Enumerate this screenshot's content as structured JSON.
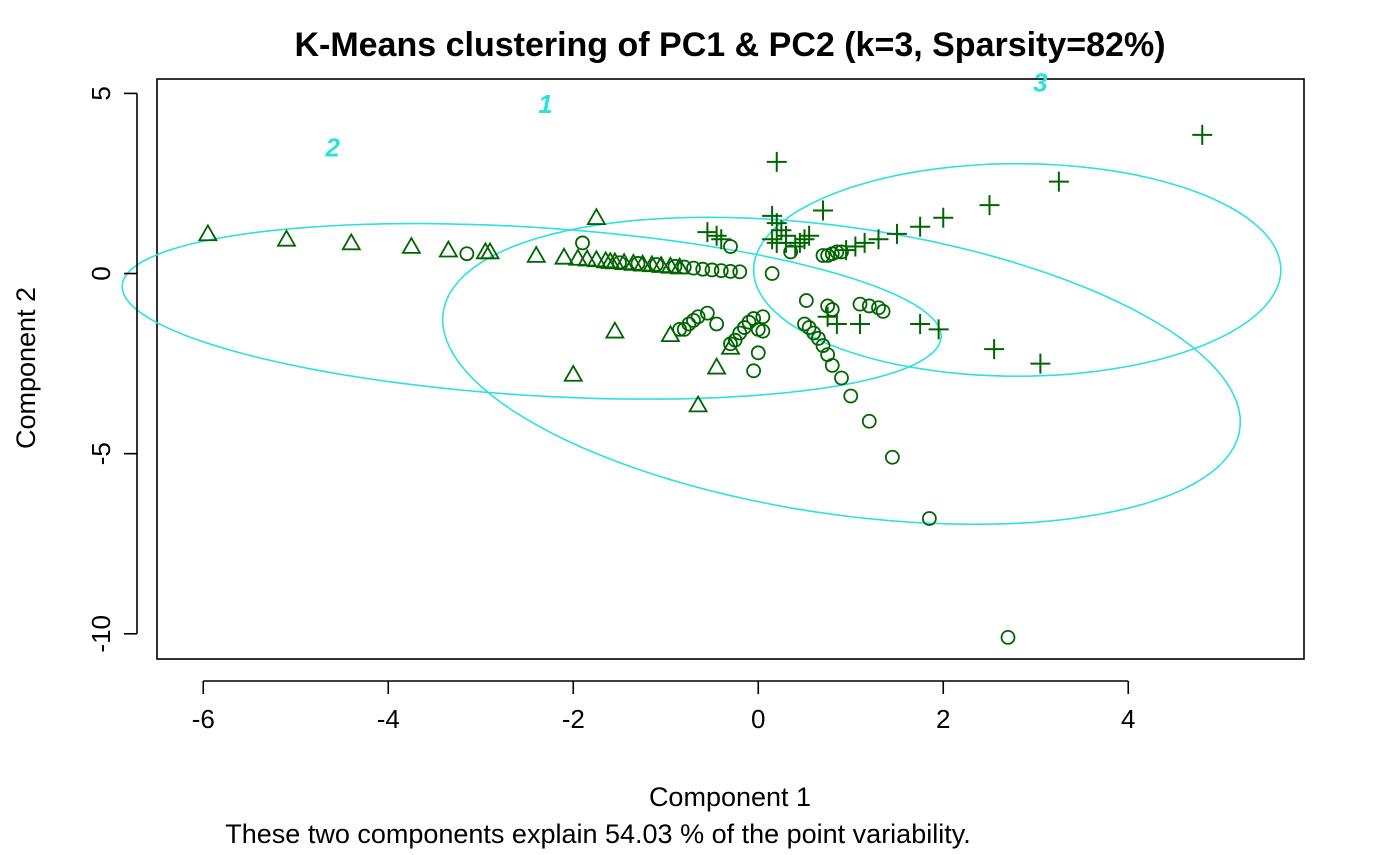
{
  "chart_data": {
    "type": "scatter",
    "title": "K-Means clustering of PC1 & PC2 (k=3, Sparsity=82%)",
    "xlabel": "Component 1",
    "ylabel": "Component 2",
    "subtitle": "These two components explain 54.03 % of the point variability.",
    "xlim": [
      -6.5,
      5.9
    ],
    "ylim": [
      -10.7,
      5.4
    ],
    "x_ticks": [
      -6,
      -4,
      -2,
      0,
      2,
      4
    ],
    "y_ticks": [
      5,
      0,
      -5,
      -10
    ],
    "grid": false,
    "colors": {
      "points": "#006400",
      "ellipse": "#2ee0e0"
    },
    "clusters": [
      {
        "label": "1",
        "ellipse": {
          "center": [
            0.9,
            -2.7
          ],
          "rx": 4.95,
          "ry": 3.5,
          "angle": -44
        },
        "label_pos": [
          -2.3,
          4.45
        ]
      },
      {
        "label": "2",
        "ellipse": {
          "center": [
            -2.45,
            -1.05
          ],
          "rx": 4.5,
          "ry": 2.3,
          "angle": -12
        },
        "label_pos": [
          -4.6,
          3.25
        ]
      },
      {
        "label": "3",
        "ellipse": {
          "center": [
            2.8,
            0.1
          ],
          "rx": 2.85,
          "ry": 2.95,
          "angle": 0
        },
        "label_pos": [
          3.05,
          5.05
        ]
      }
    ],
    "series": [
      {
        "marker": "circle",
        "cluster": "1",
        "points": [
          [
            -3.15,
            0.55
          ],
          [
            -1.9,
            0.85
          ],
          [
            -0.3,
            0.75
          ],
          [
            -1.5,
            0.3
          ],
          [
            -1.3,
            0.28
          ],
          [
            -1.1,
            0.25
          ],
          [
            -0.9,
            0.2
          ],
          [
            -0.8,
            0.18
          ],
          [
            -0.7,
            0.15
          ],
          [
            -0.6,
            0.12
          ],
          [
            -0.5,
            0.1
          ],
          [
            -0.4,
            0.08
          ],
          [
            -0.3,
            0.06
          ],
          [
            -0.2,
            0.05
          ],
          [
            0.15,
            0.0
          ],
          [
            0.35,
            0.6
          ],
          [
            0.7,
            0.5
          ],
          [
            0.75,
            0.5
          ],
          [
            0.8,
            0.55
          ],
          [
            0.85,
            0.6
          ],
          [
            0.9,
            0.6
          ],
          [
            0.52,
            -0.75
          ],
          [
            0.75,
            -0.9
          ],
          [
            0.8,
            -1.0
          ],
          [
            1.1,
            -0.85
          ],
          [
            1.2,
            -0.9
          ],
          [
            1.3,
            -0.95
          ],
          [
            1.35,
            -1.05
          ],
          [
            -0.85,
            -1.55
          ],
          [
            -0.8,
            -1.55
          ],
          [
            -0.75,
            -1.4
          ],
          [
            -0.7,
            -1.3
          ],
          [
            -0.65,
            -1.2
          ],
          [
            -0.55,
            -1.1
          ],
          [
            -0.45,
            -1.4
          ],
          [
            -0.3,
            -1.95
          ],
          [
            -0.25,
            -1.85
          ],
          [
            -0.2,
            -1.65
          ],
          [
            -0.15,
            -1.5
          ],
          [
            -0.1,
            -1.35
          ],
          [
            -0.05,
            -1.25
          ],
          [
            0.0,
            -1.55
          ],
          [
            0.05,
            -1.2
          ],
          [
            0.05,
            -1.6
          ],
          [
            0.0,
            -2.2
          ],
          [
            -0.05,
            -2.7
          ],
          [
            0.5,
            -1.4
          ],
          [
            0.55,
            -1.5
          ],
          [
            0.6,
            -1.65
          ],
          [
            0.65,
            -1.8
          ],
          [
            0.7,
            -2.0
          ],
          [
            0.75,
            -2.25
          ],
          [
            0.8,
            -2.55
          ],
          [
            0.9,
            -2.9
          ],
          [
            1.0,
            -3.4
          ],
          [
            1.2,
            -4.1
          ],
          [
            1.45,
            -5.1
          ],
          [
            1.85,
            -6.8
          ],
          [
            2.7,
            -10.1
          ]
        ]
      },
      {
        "marker": "triangle",
        "cluster": "2",
        "points": [
          [
            -5.95,
            1.1
          ],
          [
            -5.1,
            0.95
          ],
          [
            -4.4,
            0.85
          ],
          [
            -3.75,
            0.75
          ],
          [
            -3.35,
            0.65
          ],
          [
            -2.95,
            0.6
          ],
          [
            -2.9,
            0.6
          ],
          [
            -2.4,
            0.5
          ],
          [
            -2.1,
            0.45
          ],
          [
            -1.95,
            0.42
          ],
          [
            -1.85,
            0.4
          ],
          [
            -1.75,
            0.38
          ],
          [
            -1.65,
            0.35
          ],
          [
            -1.6,
            0.33
          ],
          [
            -1.55,
            0.32
          ],
          [
            -1.45,
            0.3
          ],
          [
            -1.35,
            0.28
          ],
          [
            -1.25,
            0.26
          ],
          [
            -1.15,
            0.24
          ],
          [
            -1.05,
            0.22
          ],
          [
            -0.95,
            0.2
          ],
          [
            -0.85,
            0.18
          ],
          [
            -1.75,
            1.55
          ],
          [
            -1.55,
            -1.6
          ],
          [
            -0.95,
            -1.7
          ],
          [
            -2.0,
            -2.8
          ],
          [
            -0.45,
            -2.6
          ],
          [
            -0.3,
            -2.05
          ],
          [
            -0.65,
            -3.65
          ]
        ]
      },
      {
        "marker": "plus",
        "cluster": "3",
        "points": [
          [
            4.8,
            3.85
          ],
          [
            3.25,
            2.55
          ],
          [
            2.5,
            1.9
          ],
          [
            2.0,
            1.55
          ],
          [
            1.75,
            1.3
          ],
          [
            1.5,
            1.1
          ],
          [
            1.3,
            0.95
          ],
          [
            1.15,
            0.85
          ],
          [
            1.05,
            0.75
          ],
          [
            0.95,
            0.65
          ],
          [
            0.2,
            3.1
          ],
          [
            0.7,
            1.75
          ],
          [
            0.15,
            1.6
          ],
          [
            0.2,
            1.4
          ],
          [
            0.25,
            1.2
          ],
          [
            0.3,
            1.05
          ],
          [
            0.15,
            0.95
          ],
          [
            0.2,
            0.85
          ],
          [
            0.3,
            0.85
          ],
          [
            0.55,
            1.05
          ],
          [
            0.5,
            0.95
          ],
          [
            0.45,
            0.85
          ],
          [
            0.4,
            0.75
          ],
          [
            -0.55,
            1.15
          ],
          [
            -0.45,
            1.05
          ],
          [
            -0.4,
            0.95
          ],
          [
            0.75,
            -1.2
          ],
          [
            0.85,
            -1.4
          ],
          [
            1.1,
            -1.4
          ],
          [
            1.75,
            -1.4
          ],
          [
            1.95,
            -1.55
          ],
          [
            2.55,
            -2.1
          ],
          [
            3.05,
            -2.5
          ]
        ]
      }
    ]
  }
}
